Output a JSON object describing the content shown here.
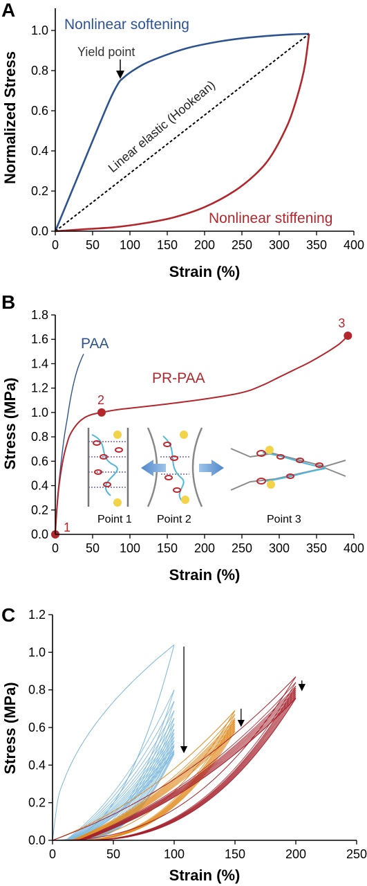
{
  "colors": {
    "blue": "#2d5391",
    "red": "#b2262c",
    "light_blue": "#78b6dc",
    "orange": "#e08b1f",
    "dark_red": "#a51f2a",
    "gray": "#555555"
  },
  "chart_data": [
    {
      "panel": "A",
      "type": "line",
      "xlabel": "Strain (%)",
      "ylabel": "Normalized Stress",
      "xlim": [
        0,
        400
      ],
      "ylim": [
        0,
        1.04
      ],
      "xticks": [
        "0",
        "50",
        "100",
        "150",
        "200",
        "250",
        "300",
        "350",
        "400"
      ],
      "yticks": [
        "0.0",
        "0.2",
        "0.4",
        "0.6",
        "0.8",
        "1.0"
      ],
      "series": [
        {
          "name": "Nonlinear softening",
          "color": "#2d5391",
          "x": [
            0,
            20,
            40,
            60,
            75,
            85,
            90,
            100,
            120,
            150,
            180,
            220,
            260,
            300,
            320,
            340
          ],
          "y": [
            0,
            0.18,
            0.36,
            0.54,
            0.67,
            0.74,
            0.76,
            0.79,
            0.835,
            0.88,
            0.915,
            0.945,
            0.965,
            0.977,
            0.981,
            0.983
          ]
        },
        {
          "name": "Linear elastic (Hookean)",
          "color": "#000000",
          "dashed": true,
          "x": [
            0,
            340
          ],
          "y": [
            0,
            0.983
          ]
        },
        {
          "name": "Nonlinear stiffening",
          "color": "#b2262c",
          "x": [
            0,
            40,
            80,
            120,
            160,
            200,
            240,
            270,
            290,
            310,
            320,
            330,
            335,
            340
          ],
          "y": [
            0,
            0.01,
            0.02,
            0.04,
            0.07,
            0.12,
            0.2,
            0.29,
            0.38,
            0.52,
            0.62,
            0.75,
            0.84,
            0.983
          ]
        }
      ],
      "annotations": {
        "softening": "Nonlinear softening",
        "stiffening": "Nonlinear stiffening",
        "hookean": "Linear elastic (Hookean)",
        "yield": "Yield point"
      }
    },
    {
      "panel": "B",
      "type": "line",
      "xlabel": "Strain (%)",
      "ylabel": "Stress (MPa)",
      "xlim": [
        0,
        400
      ],
      "ylim": [
        0,
        1.8
      ],
      "xticks": [
        "0",
        "50",
        "100",
        "150",
        "200",
        "250",
        "300",
        "350",
        "400"
      ],
      "yticks": [
        "0.0",
        "0.2",
        "0.4",
        "0.6",
        "0.8",
        "1.0",
        "1.2",
        "1.4",
        "1.6",
        "1.8"
      ],
      "series": [
        {
          "name": "PAA",
          "color": "#2d5391",
          "x": [
            0,
            3,
            8,
            12,
            16,
            20,
            25,
            30,
            35,
            38
          ],
          "y": [
            0,
            0.3,
            0.6,
            0.8,
            0.95,
            1.1,
            1.25,
            1.36,
            1.44,
            1.48
          ]
        },
        {
          "name": "PR-PAA",
          "color": "#b2262c",
          "x": [
            0,
            2,
            5,
            10,
            15,
            20,
            30,
            40,
            50,
            62,
            80,
            100,
            150,
            200,
            240,
            260,
            280,
            300,
            320,
            340,
            360,
            380,
            392
          ],
          "y": [
            0,
            0.2,
            0.4,
            0.6,
            0.73,
            0.82,
            0.91,
            0.96,
            0.985,
            1.0,
            1.02,
            1.035,
            1.07,
            1.11,
            1.15,
            1.18,
            1.23,
            1.29,
            1.35,
            1.41,
            1.48,
            1.56,
            1.63
          ]
        }
      ],
      "points": [
        {
          "label": "1",
          "x": 0,
          "y": 0
        },
        {
          "label": "2",
          "x": 62,
          "y": 1.0
        },
        {
          "label": "3",
          "x": 392,
          "y": 1.63
        }
      ],
      "inset_labels": [
        "Point 1",
        "Point 2",
        "Point 3"
      ]
    },
    {
      "panel": "C",
      "type": "line",
      "xlabel": "Strain (%)",
      "ylabel": "Stress (MPa)",
      "xlim": [
        0,
        250
      ],
      "ylim": [
        0,
        1.2
      ],
      "xticks": [
        "0",
        "50",
        "100",
        "150",
        "200",
        "250"
      ],
      "yticks": [
        "0.0",
        "0.2",
        "0.4",
        "0.6",
        "0.8",
        "1.0",
        "1.2"
      ],
      "series": [
        {
          "color": "#78b6dc",
          "max_strain": 100,
          "peaks": [
            1.04,
            0.8,
            0.74,
            0.69,
            0.65,
            0.62,
            0.59,
            0.57,
            0.55,
            0.53,
            0.51,
            0.5,
            0.48,
            0.47,
            0.46
          ]
        },
        {
          "color": "#e08b1f",
          "max_strain": 150,
          "peaks": [
            0.69,
            0.67,
            0.65,
            0.64,
            0.63,
            0.62,
            0.61,
            0.6,
            0.59,
            0.58
          ]
        },
        {
          "color": "#a51f2a",
          "max_strain": 200,
          "peaks": [
            0.87,
            0.84,
            0.82,
            0.81,
            0.8,
            0.79,
            0.78,
            0.77,
            0.76,
            0.755
          ]
        }
      ],
      "arrows": [
        {
          "x": 108,
          "y_from": 1.03,
          "y_to": 0.46
        },
        {
          "x": 155,
          "y_from": 0.7,
          "y_to": 0.6
        },
        {
          "x": 205,
          "y_from": 0.85,
          "y_to": 0.79
        }
      ]
    }
  ]
}
